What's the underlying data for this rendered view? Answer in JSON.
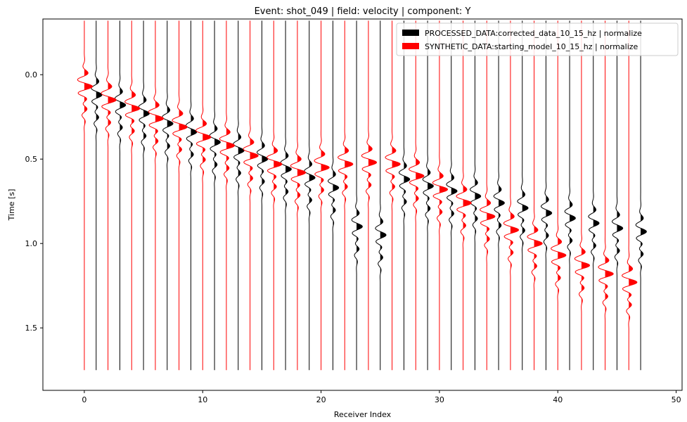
{
  "chart_data": {
    "type": "line",
    "title": "Event: shot_049 | field: velocity | component: Y",
    "xlabel": "Receiver Index",
    "ylabel": "Time [s]",
    "xlim": [
      -3.5,
      50.5
    ],
    "ylim": [
      1.87,
      -0.33
    ],
    "y_inverted": true,
    "xticks": [
      0,
      10,
      20,
      30,
      40,
      50
    ],
    "yticks": [
      0.0,
      0.5,
      1.0,
      1.5
    ],
    "xtick_labels": [
      "0",
      "10",
      "20",
      "30",
      "40",
      "50"
    ],
    "ytick_labels": [
      "0.0",
      "0.5",
      "1.0",
      "1.5"
    ],
    "trace_time_range": [
      -0.32,
      1.75
    ],
    "legend_position": "top-right",
    "series": [
      {
        "name": "PROCESSED_DATA:corrected_data_10_15_hz | normalize",
        "color": "#000000",
        "receivers": [
          1,
          3,
          5,
          7,
          9,
          11,
          13,
          15,
          17,
          19,
          21,
          23,
          25,
          27,
          29,
          31,
          33,
          35,
          37,
          39,
          41,
          43,
          45,
          47
        ],
        "arrival_times": [
          0.12,
          0.18,
          0.23,
          0.29,
          0.34,
          0.4,
          0.45,
          0.5,
          0.56,
          0.61,
          0.67,
          0.9,
          0.95,
          0.62,
          0.66,
          0.69,
          0.72,
          0.76,
          0.79,
          0.82,
          0.85,
          0.88,
          0.91,
          0.93
        ],
        "amplitude": 0.5
      },
      {
        "name": "SYNTHETIC_DATA:starting_model_10_15_hz | normalize",
        "color": "#ff0000",
        "receivers": [
          0,
          2,
          4,
          6,
          8,
          10,
          12,
          14,
          16,
          18,
          20,
          22,
          24,
          26,
          28,
          30,
          32,
          34,
          36,
          38,
          40,
          42,
          44,
          46
        ],
        "arrival_times": [
          0.07,
          0.15,
          0.2,
          0.26,
          0.31,
          0.37,
          0.42,
          0.48,
          0.53,
          0.58,
          0.55,
          0.53,
          0.52,
          0.53,
          0.6,
          0.68,
          0.76,
          0.84,
          0.92,
          1.0,
          1.07,
          1.13,
          1.18,
          1.23
        ],
        "amplitude": 0.7
      }
    ]
  }
}
